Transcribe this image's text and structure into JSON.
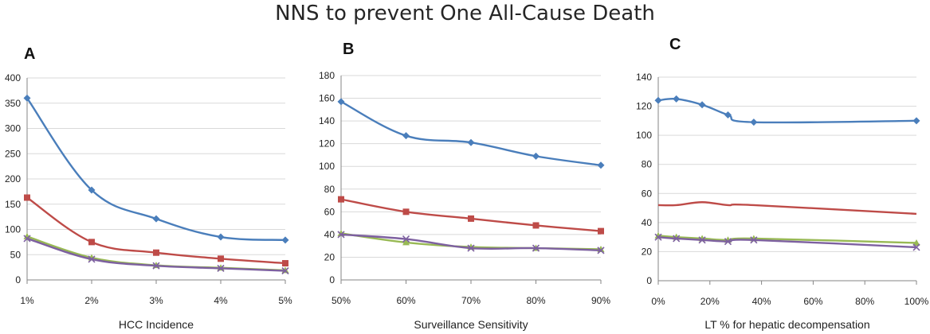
{
  "title": "NNS to prevent One All-Cause Death",
  "colors": {
    "series": [
      "#4a7ebb",
      "#be4b48",
      "#98b954",
      "#7d60a0"
    ],
    "grid": "#d9d9d9",
    "axis": "#868686"
  },
  "chart_data": [
    {
      "type": "line",
      "panel": "A",
      "xlabel": "HCC Incidence",
      "ylabel": "",
      "categories": [
        "1%",
        "2%",
        "3%",
        "4%",
        "5%"
      ],
      "ylim": [
        0,
        400
      ],
      "yticks": [
        0,
        50,
        100,
        150,
        200,
        250,
        300,
        350,
        400
      ],
      "grid": true,
      "series": [
        {
          "values": [
            360,
            178,
            121,
            85,
            79
          ],
          "marker": "diamond"
        },
        {
          "values": [
            163,
            75,
            54,
            42,
            33
          ],
          "marker": "square"
        },
        {
          "values": [
            86,
            44,
            29,
            24,
            19
          ],
          "marker": "triangle"
        },
        {
          "values": [
            82,
            41,
            28,
            23,
            18
          ],
          "marker": "x"
        }
      ]
    },
    {
      "type": "line",
      "panel": "B",
      "xlabel": "Surveillance Sensitivity",
      "ylabel": "",
      "categories": [
        "50%",
        "60%",
        "70%",
        "80%",
        "90%"
      ],
      "ylim": [
        0,
        180
      ],
      "yticks": [
        0,
        20,
        40,
        60,
        80,
        100,
        120,
        140,
        160,
        180
      ],
      "grid": true,
      "series": [
        {
          "values": [
            157,
            127,
            121,
            109,
            101
          ],
          "marker": "diamond"
        },
        {
          "values": [
            71,
            60,
            54,
            48,
            43
          ],
          "marker": "square"
        },
        {
          "values": [
            41,
            33,
            29,
            28,
            27
          ],
          "marker": "triangle"
        },
        {
          "values": [
            40,
            36,
            28,
            28,
            26
          ],
          "marker": "x"
        }
      ]
    },
    {
      "type": "line",
      "panel": "C",
      "xlabel": "LT % for hepatic decompensation",
      "ylabel": "",
      "x": [
        0,
        7,
        17,
        27,
        37,
        100
      ],
      "xticks": [
        "0%",
        "20%",
        "40%",
        "60%",
        "80%",
        "100%"
      ],
      "xtick_values": [
        0,
        20,
        40,
        60,
        80,
        100
      ],
      "xlim": [
        0,
        100
      ],
      "ylim": [
        0,
        140
      ],
      "yticks": [
        0,
        20,
        40,
        60,
        80,
        100,
        120,
        140
      ],
      "grid": true,
      "series": [
        {
          "values": [
            124,
            125,
            121,
            114,
            109,
            110
          ],
          "marker": "diamond"
        },
        {
          "values": [
            52,
            52,
            54,
            52,
            52,
            46
          ],
          "marker": "none"
        },
        {
          "values": [
            31,
            30,
            29,
            28,
            29,
            26
          ],
          "marker": "triangle"
        },
        {
          "values": [
            30,
            29,
            28,
            27,
            28,
            23
          ],
          "marker": "x"
        }
      ]
    }
  ]
}
